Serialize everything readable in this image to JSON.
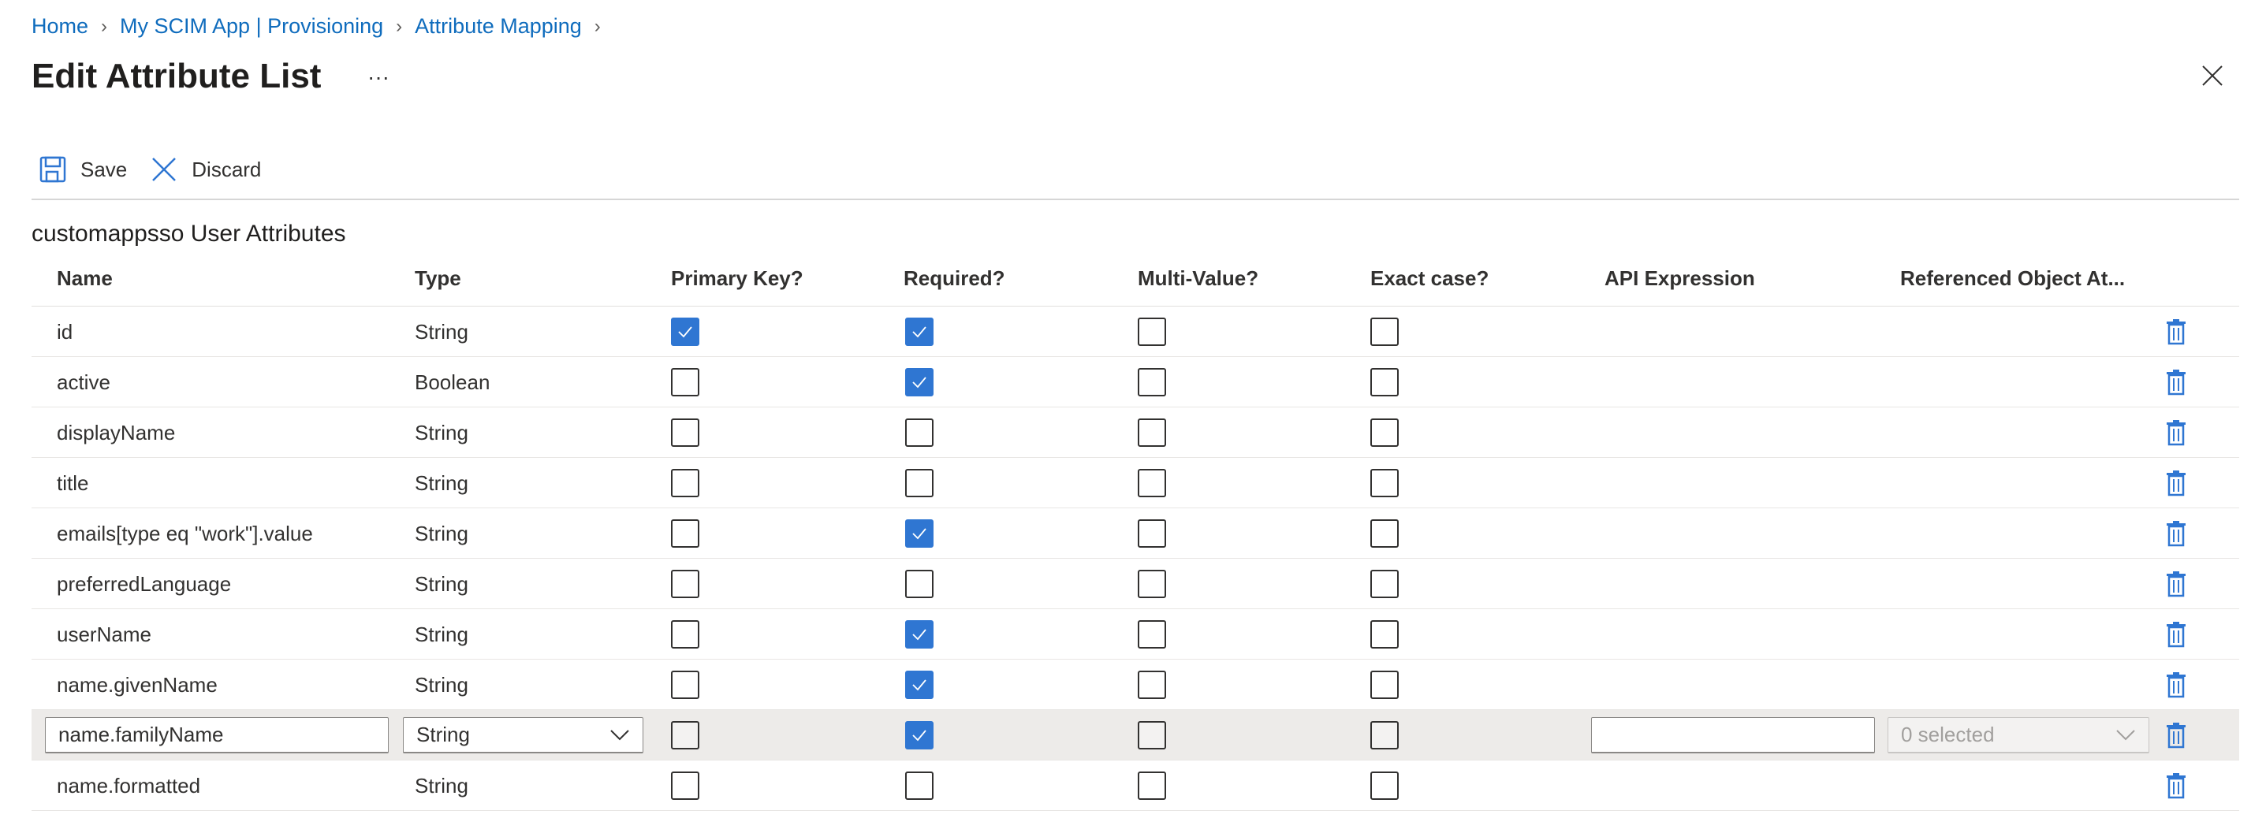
{
  "breadcrumb": [
    "Home",
    "My SCIM App | Provisioning",
    "Attribute Mapping"
  ],
  "title": "Edit Attribute List",
  "more_label": "···",
  "toolbar": {
    "save": "Save",
    "discard": "Discard"
  },
  "section_title": "customappsso User Attributes",
  "columns": [
    "Name",
    "Type",
    "Primary Key?",
    "Required?",
    "Multi-Value?",
    "Exact case?",
    "API Expression",
    "Referenced Object At..."
  ],
  "colors": {
    "accent": "#2f76d2",
    "link": "#0f6cbd",
    "edit_row": "#edebe9"
  },
  "rows": [
    {
      "name": "id",
      "type": "String",
      "primary": true,
      "required": true,
      "multi": false,
      "exact": false
    },
    {
      "name": "active",
      "type": "Boolean",
      "primary": false,
      "required": true,
      "multi": false,
      "exact": false
    },
    {
      "name": "displayName",
      "type": "String",
      "primary": false,
      "required": false,
      "multi": false,
      "exact": false
    },
    {
      "name": "title",
      "type": "String",
      "primary": false,
      "required": false,
      "multi": false,
      "exact": false
    },
    {
      "name": "emails[type eq \"work\"].value",
      "type": "String",
      "primary": false,
      "required": true,
      "multi": false,
      "exact": false
    },
    {
      "name": "preferredLanguage",
      "type": "String",
      "primary": false,
      "required": false,
      "multi": false,
      "exact": false
    },
    {
      "name": "userName",
      "type": "String",
      "primary": false,
      "required": true,
      "multi": false,
      "exact": false
    },
    {
      "name": "name.givenName",
      "type": "String",
      "primary": false,
      "required": true,
      "multi": false,
      "exact": false
    },
    {
      "name": "name.familyName",
      "type": "String",
      "primary": false,
      "required": true,
      "multi": false,
      "exact": false,
      "editing": true,
      "api_expression": "",
      "referenced": "0 selected"
    },
    {
      "name": "name.formatted",
      "type": "String",
      "primary": false,
      "required": false,
      "multi": false,
      "exact": false
    }
  ]
}
